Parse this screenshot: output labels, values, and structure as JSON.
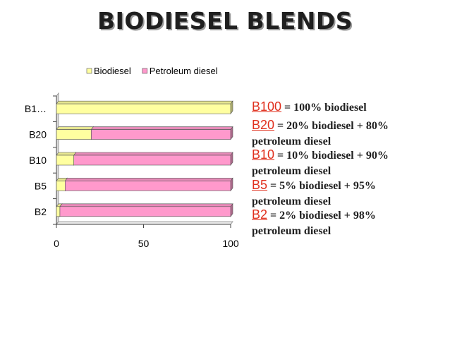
{
  "slide": {
    "title": "BIODIESEL BLENDS"
  },
  "chart_data": {
    "type": "bar",
    "orientation": "horizontal",
    "stacked": true,
    "style": "3d",
    "categories": [
      "B2",
      "B5",
      "B10",
      "B20",
      "B1…"
    ],
    "series": [
      {
        "name": "Biodiesel",
        "values": [
          2,
          5,
          10,
          20,
          100
        ],
        "color": "#ffffa0"
      },
      {
        "name": "Petroleum diesel",
        "values": [
          98,
          95,
          90,
          80,
          0
        ],
        "color": "#ff99cc"
      }
    ],
    "xlim": [
      0,
      100
    ],
    "xticks": [
      0,
      50,
      100
    ],
    "legend_position": "top",
    "grid": false
  },
  "descriptions": [
    {
      "code": "B100",
      "text": "= 100% biodiesel",
      "text2": ""
    },
    {
      "code": "B20",
      "text": "= 20% biodiesel + 80%",
      "text2": "petroleum diesel"
    },
    {
      "code": "B10",
      "text": "= 10% biodiesel + 90%",
      "text2": "petroleum diesel"
    },
    {
      "code": "B5",
      "text": "= 5% biodiesel + 95%",
      "text2": "petroleum diesel"
    },
    {
      "code": "B2",
      "text": "= 2% biodiesel + 98%",
      "text2": "petroleum diesel"
    }
  ]
}
